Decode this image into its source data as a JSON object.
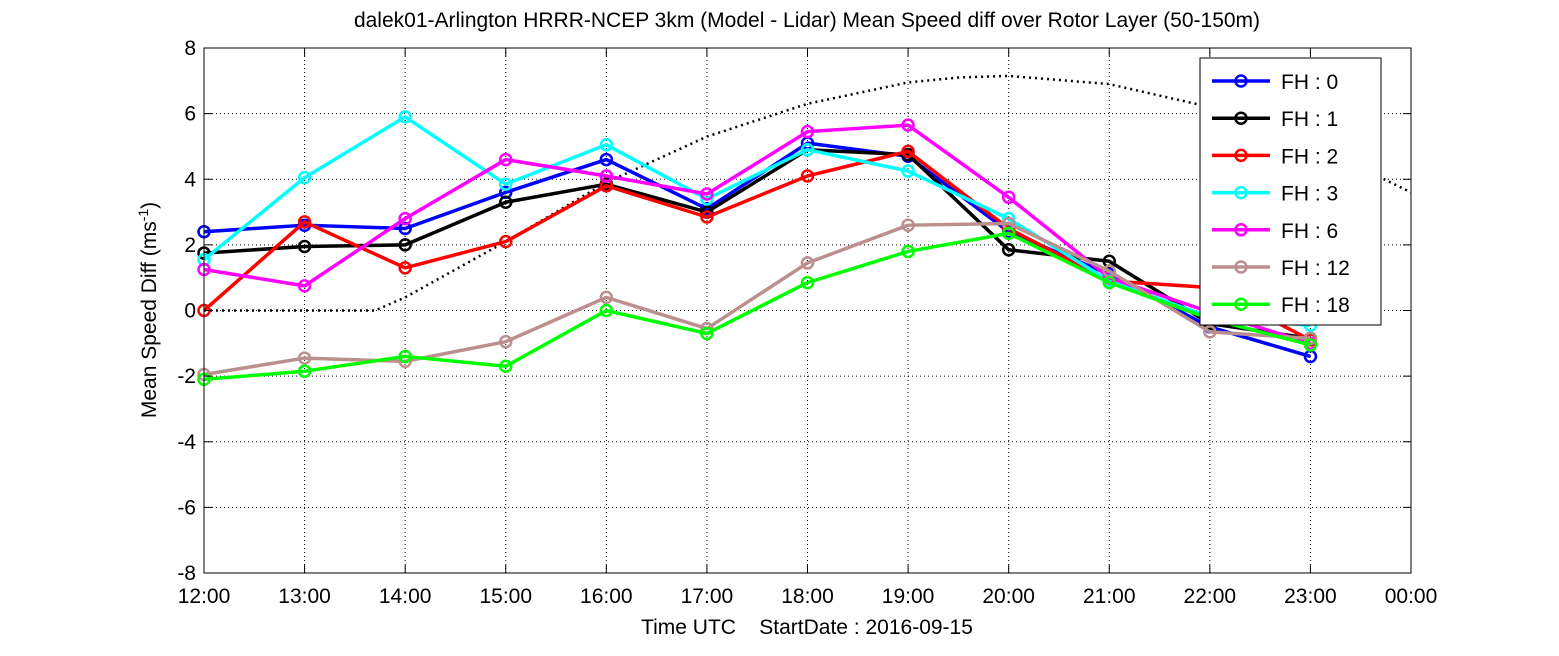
{
  "chart_data": {
    "type": "line",
    "title": "dalek01-Arlington HRRR-NCEP 3km (Model - Lidar) Mean Speed diff over Rotor Layer (50-150m)",
    "xlabel": "Time UTC    StartDate : 2016-09-15",
    "ylabel_main": "Mean Speed Diff (ms",
    "ylabel_sup": "-1",
    "ylabel_close": ")",
    "x_ticks": [
      "12:00",
      "13:00",
      "14:00",
      "15:00",
      "16:00",
      "17:00",
      "18:00",
      "19:00",
      "20:00",
      "21:00",
      "22:00",
      "23:00",
      "00:00"
    ],
    "y_ticks": [
      8,
      6,
      4,
      2,
      0,
      -2,
      -4,
      -6,
      -8
    ],
    "xlim": [
      12,
      24
    ],
    "ylim": [
      -8,
      8
    ],
    "grid": true,
    "legend_position": "top-right",
    "series": [
      {
        "name": "FH : 0",
        "color": "#0000ff",
        "x": [
          12,
          13,
          14,
          15,
          16,
          17,
          18,
          19,
          20,
          21,
          22,
          23
        ],
        "y": [
          2.4,
          2.6,
          2.5,
          3.6,
          4.6,
          3.1,
          5.1,
          4.7,
          2.4,
          1.1,
          -0.5,
          -1.4
        ]
      },
      {
        "name": "FH : 1",
        "color": "#000000",
        "x": [
          12,
          13,
          14,
          15,
          16,
          17,
          18,
          19,
          20,
          21,
          22,
          23
        ],
        "y": [
          1.75,
          1.95,
          2.0,
          3.3,
          3.85,
          3.0,
          4.9,
          4.75,
          1.85,
          1.5,
          -0.4,
          -0.85
        ]
      },
      {
        "name": "FH : 2",
        "color": "#ff0000",
        "x": [
          12,
          13,
          14,
          15,
          16,
          17,
          18,
          19,
          20,
          21,
          22,
          23
        ],
        "y": [
          0.0,
          2.7,
          1.3,
          2.1,
          3.8,
          2.85,
          4.1,
          4.85,
          2.5,
          0.9,
          0.7,
          -0.9
        ]
      },
      {
        "name": "FH : 3",
        "color": "#00ffff",
        "x": [
          12,
          13,
          14,
          15,
          16,
          17,
          18,
          19,
          20,
          21,
          22,
          23
        ],
        "y": [
          1.55,
          4.05,
          5.9,
          3.85,
          5.05,
          3.4,
          4.9,
          4.25,
          2.8,
          0.9,
          -0.2,
          -0.45
        ]
      },
      {
        "name": "FH : 6",
        "color": "#ff00ff",
        "x": [
          12,
          13,
          14,
          15,
          16,
          17,
          18,
          19,
          20,
          21,
          22,
          23
        ],
        "y": [
          1.25,
          0.75,
          2.8,
          4.6,
          4.1,
          3.55,
          5.45,
          5.65,
          3.45,
          1.0,
          -0.05,
          -1.0
        ]
      },
      {
        "name": "FH : 12",
        "color": "#bc8f8f",
        "x": [
          12,
          13,
          14,
          15,
          16,
          17,
          18,
          19,
          20,
          21,
          22,
          23
        ],
        "y": [
          -1.95,
          -1.45,
          -1.55,
          -0.95,
          0.4,
          -0.55,
          1.45,
          2.6,
          2.65,
          1.2,
          -0.65,
          -0.85
        ]
      },
      {
        "name": "FH : 18",
        "color": "#00ff00",
        "x": [
          12,
          13,
          14,
          15,
          16,
          17,
          18,
          19,
          20,
          21,
          22,
          23
        ],
        "y": [
          -2.1,
          -1.85,
          -1.4,
          -1.7,
          0.0,
          -0.7,
          0.85,
          1.8,
          2.35,
          0.85,
          -0.25,
          -1.05
        ]
      }
    ],
    "reference_curve": {
      "style": "dotted",
      "color": "#000000",
      "x": [
        12,
        13.7,
        14,
        15,
        16,
        17,
        18,
        19,
        19.5,
        20,
        21,
        22,
        23,
        24
      ],
      "y": [
        0,
        0,
        0.4,
        2.1,
        3.9,
        5.3,
        6.3,
        6.95,
        7.1,
        7.15,
        6.9,
        6.2,
        5.1,
        3.6
      ]
    }
  }
}
